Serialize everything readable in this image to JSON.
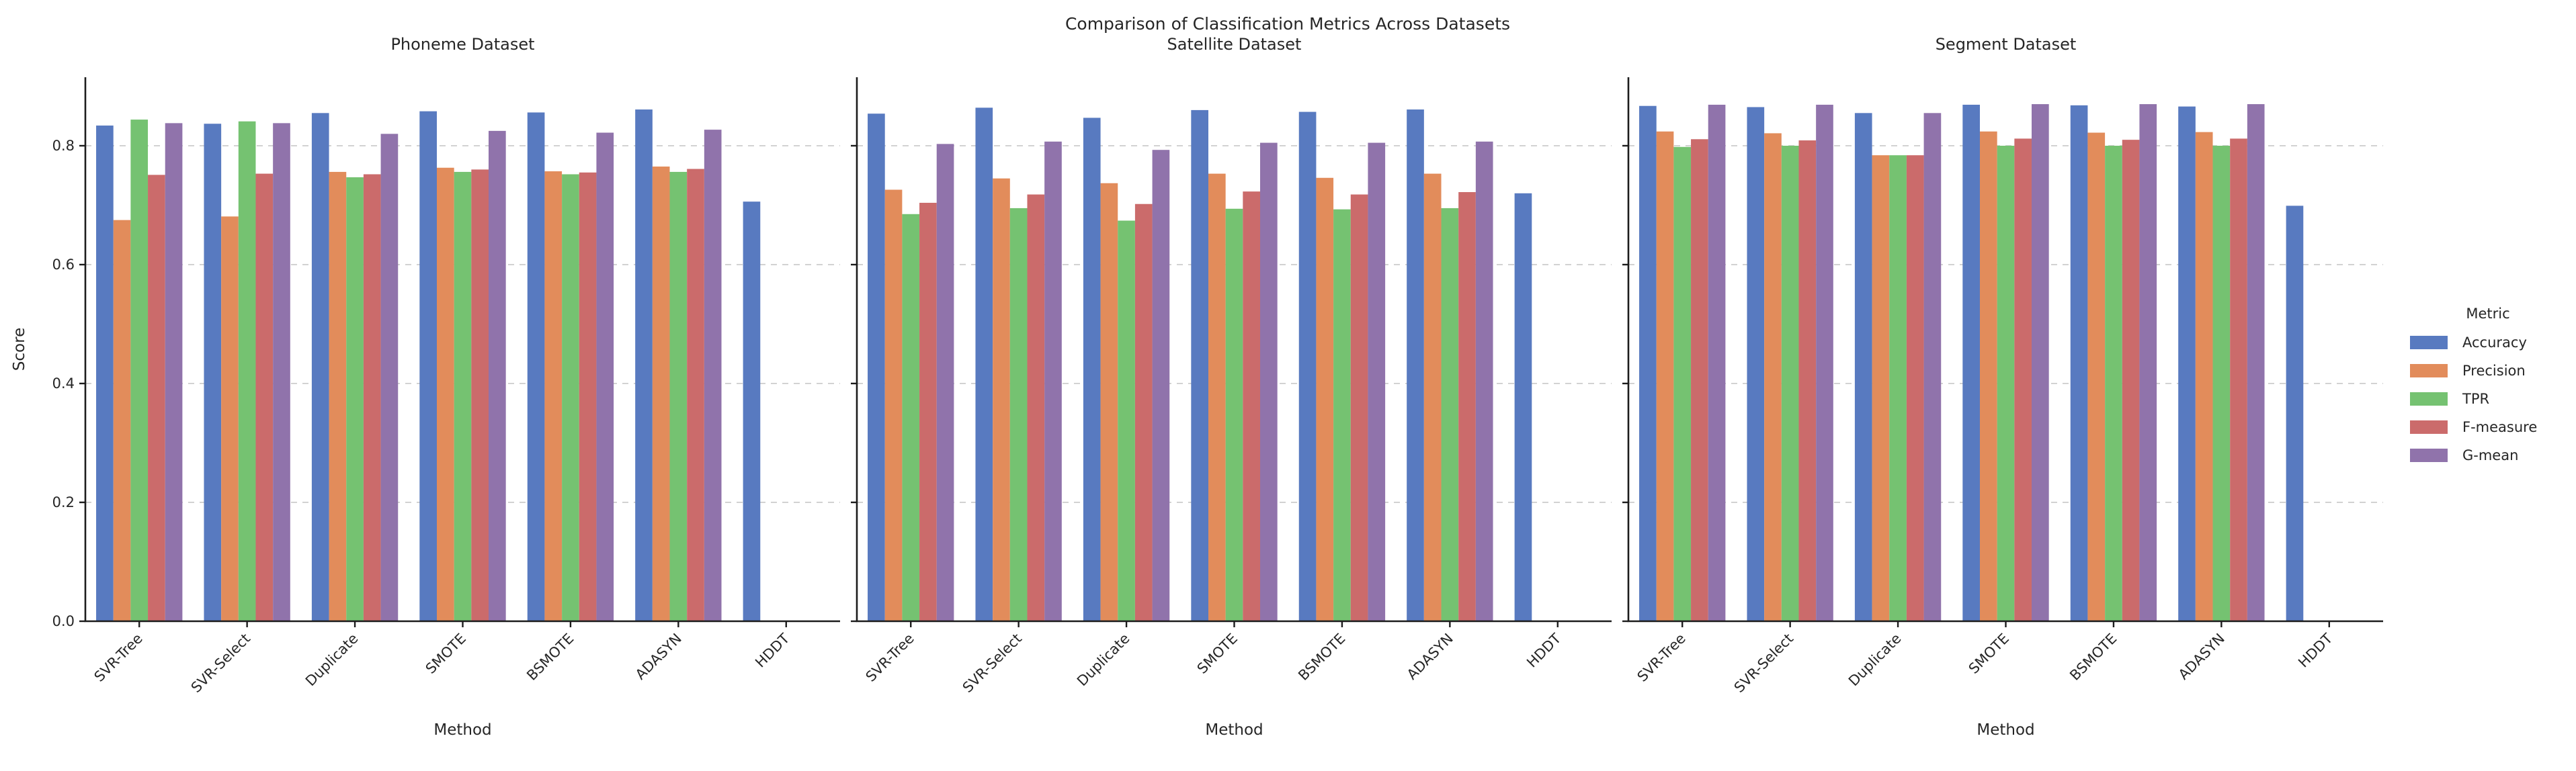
{
  "chart_data": {
    "type": "bar",
    "title": "Comparison of Classification Metrics Across Datasets",
    "xlabel": "Method",
    "ylabel": "Score",
    "legend_title": "Metric",
    "categories": [
      "SVR-Tree",
      "SVR-Select",
      "Duplicate",
      "SMOTE",
      "BSMOTE",
      "ADASYN",
      "HDDT"
    ],
    "ytick_labels": [
      "0.0",
      "0.2",
      "0.4",
      "0.6",
      "0.8"
    ],
    "ytick_values": [
      0.0,
      0.2,
      0.4,
      0.6,
      0.8
    ],
    "ylim": [
      0,
      0.912
    ],
    "grid": "dashed horizontal at major y ticks",
    "legend_position": "center right, outside axes",
    "metrics": [
      {
        "name": "Accuracy",
        "color": "#587AC0"
      },
      {
        "name": "Precision",
        "color": "#E28C5B"
      },
      {
        "name": "TPR",
        "color": "#75C271"
      },
      {
        "name": "F-measure",
        "color": "#CB6B6B"
      },
      {
        "name": "G-mean",
        "color": "#9073AB"
      }
    ],
    "panels": [
      {
        "title": "Phoneme Dataset",
        "series": [
          {
            "name": "Accuracy",
            "values": [
              0.834,
              0.837,
              0.855,
              0.858,
              0.856,
              0.861,
              0.706
            ]
          },
          {
            "name": "Precision",
            "values": [
              0.675,
              0.681,
              0.756,
              0.763,
              0.757,
              0.765,
              0.0
            ]
          },
          {
            "name": "TPR",
            "values": [
              0.844,
              0.841,
              0.747,
              0.756,
              0.752,
              0.756,
              0.0
            ]
          },
          {
            "name": "F-measure",
            "values": [
              0.751,
              0.753,
              0.752,
              0.76,
              0.755,
              0.761,
              0.0
            ]
          },
          {
            "name": "G-mean",
            "values": [
              0.838,
              0.838,
              0.82,
              0.825,
              0.822,
              0.827,
              0.0
            ]
          }
        ]
      },
      {
        "title": "Satellite Dataset",
        "series": [
          {
            "name": "Accuracy",
            "values": [
              0.854,
              0.864,
              0.847,
              0.86,
              0.857,
              0.861,
              0.72
            ]
          },
          {
            "name": "Precision",
            "values": [
              0.726,
              0.745,
              0.737,
              0.753,
              0.746,
              0.753,
              0.0
            ]
          },
          {
            "name": "TPR",
            "values": [
              0.685,
              0.695,
              0.674,
              0.694,
              0.693,
              0.695,
              0.0
            ]
          },
          {
            "name": "F-measure",
            "values": [
              0.704,
              0.718,
              0.702,
              0.723,
              0.718,
              0.722,
              0.0
            ]
          },
          {
            "name": "G-mean",
            "values": [
              0.803,
              0.807,
              0.793,
              0.805,
              0.805,
              0.807,
              0.0
            ]
          }
        ]
      },
      {
        "title": "Segment Dataset",
        "series": [
          {
            "name": "Accuracy",
            "values": [
              0.867,
              0.865,
              0.855,
              0.869,
              0.868,
              0.866,
              0.699
            ]
          },
          {
            "name": "Precision",
            "values": [
              0.824,
              0.821,
              0.784,
              0.824,
              0.822,
              0.823,
              0.0
            ]
          },
          {
            "name": "TPR",
            "values": [
              0.798,
              0.8,
              0.784,
              0.8,
              0.8,
              0.8,
              0.0
            ]
          },
          {
            "name": "F-measure",
            "values": [
              0.811,
              0.809,
              0.784,
              0.812,
              0.81,
              0.812,
              0.0
            ]
          },
          {
            "name": "G-mean",
            "values": [
              0.869,
              0.869,
              0.855,
              0.87,
              0.87,
              0.87,
              0.0
            ]
          }
        ]
      }
    ],
    "style": {
      "grid_color": "#cccccc",
      "spine_color": "#1c1c1c",
      "text_color": "#262626",
      "background": "#ffffff"
    }
  }
}
